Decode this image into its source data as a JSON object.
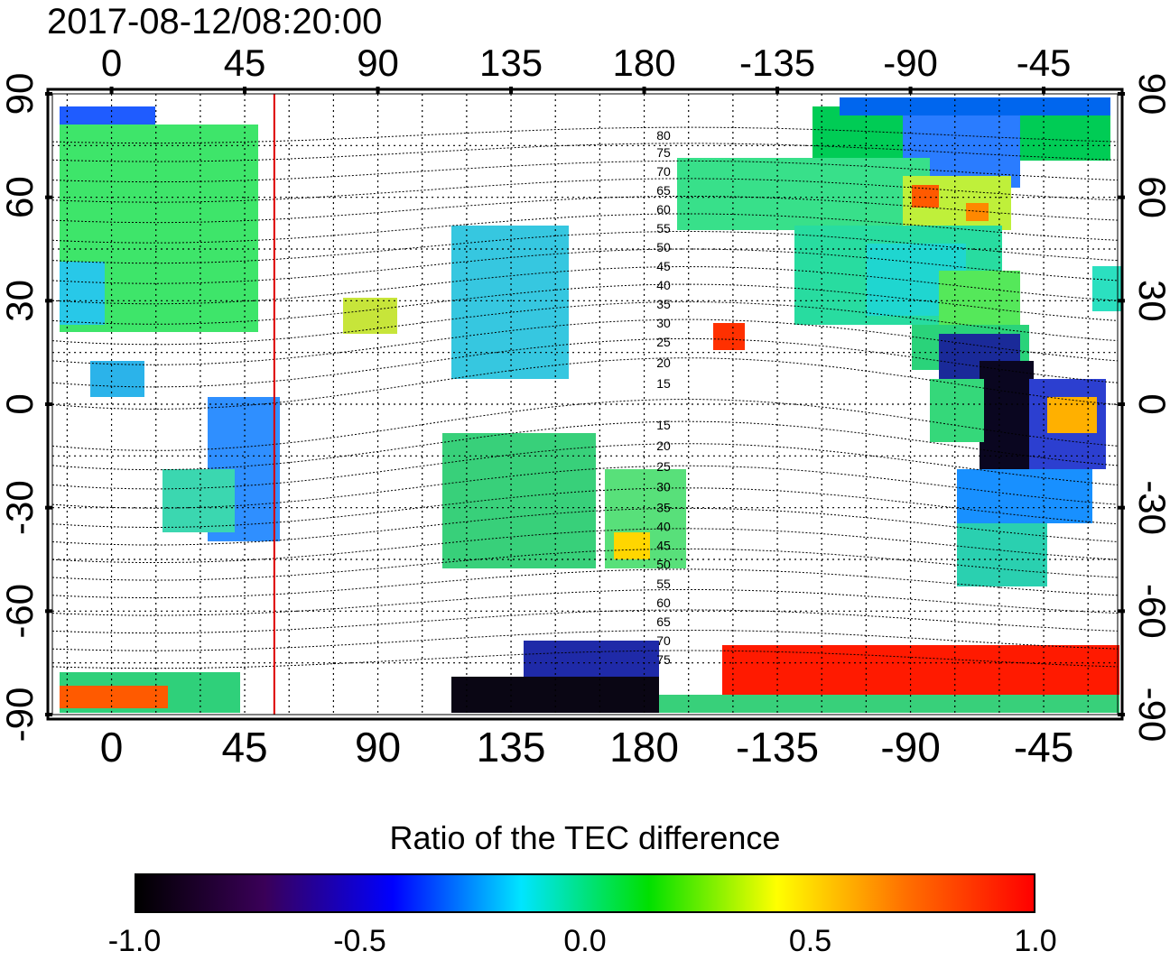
{
  "header": {
    "timestamp": "2017-08-12/08:20:00"
  },
  "map": {
    "type": "global-TEC-difference-map",
    "top_lon_labels": [
      "0",
      "45",
      "90",
      "135",
      "180",
      "-135",
      "-90",
      "-45"
    ],
    "bottom_lon_labels": [
      "0",
      "45",
      "90",
      "135",
      "180",
      "-135",
      "-90",
      "-45"
    ],
    "left_lat_labels": [
      "90",
      "60",
      "30",
      "0",
      "-30",
      "-60",
      "-90"
    ],
    "right_lat_labels": [
      "90",
      "60",
      "30",
      "0",
      "-30",
      "-60",
      "-90"
    ],
    "contour_labels": [
      {
        "v": "80",
        "lat": 78
      },
      {
        "v": "75",
        "lat": 73
      },
      {
        "v": "70",
        "lat": 67.5
      },
      {
        "v": "65",
        "lat": 62
      },
      {
        "v": "60",
        "lat": 56.5
      },
      {
        "v": "55",
        "lat": 51
      },
      {
        "v": "50",
        "lat": 45.5
      },
      {
        "v": "45",
        "lat": 40
      },
      {
        "v": "40",
        "lat": 34.5
      },
      {
        "v": "35",
        "lat": 29
      },
      {
        "v": "30",
        "lat": 23.5
      },
      {
        "v": "25",
        "lat": 18
      },
      {
        "v": "20",
        "lat": 12
      },
      {
        "v": "15",
        "lat": 6
      },
      {
        "v": "15",
        "lat": -6
      },
      {
        "v": "20",
        "lat": -12
      },
      {
        "v": "25",
        "lat": -18
      },
      {
        "v": "30",
        "lat": -24
      },
      {
        "v": "35",
        "lat": -30
      },
      {
        "v": "40",
        "lat": -35.5
      },
      {
        "v": "45",
        "lat": -41
      },
      {
        "v": "50",
        "lat": -46.5
      },
      {
        "v": "55",
        "lat": -52
      },
      {
        "v": "60",
        "lat": -57.5
      },
      {
        "v": "65",
        "lat": -63
      },
      {
        "v": "70",
        "lat": -68.5
      },
      {
        "v": "75",
        "lat": -74
      }
    ],
    "terminator_marker_lon": 55,
    "marker_color": "#dd0000"
  },
  "colorbar": {
    "title": "Ratio of the TEC difference",
    "ticks": [
      "-1.0",
      "-0.5",
      "0.0",
      "0.5",
      "1.0"
    ],
    "range": [
      -1.0,
      1.0
    ],
    "colors": [
      "#000000",
      "#3a0058",
      "#0000ff",
      "#00e5ff",
      "#00e000",
      "#ffff00",
      "#ff7000",
      "#ff0000"
    ]
  }
}
